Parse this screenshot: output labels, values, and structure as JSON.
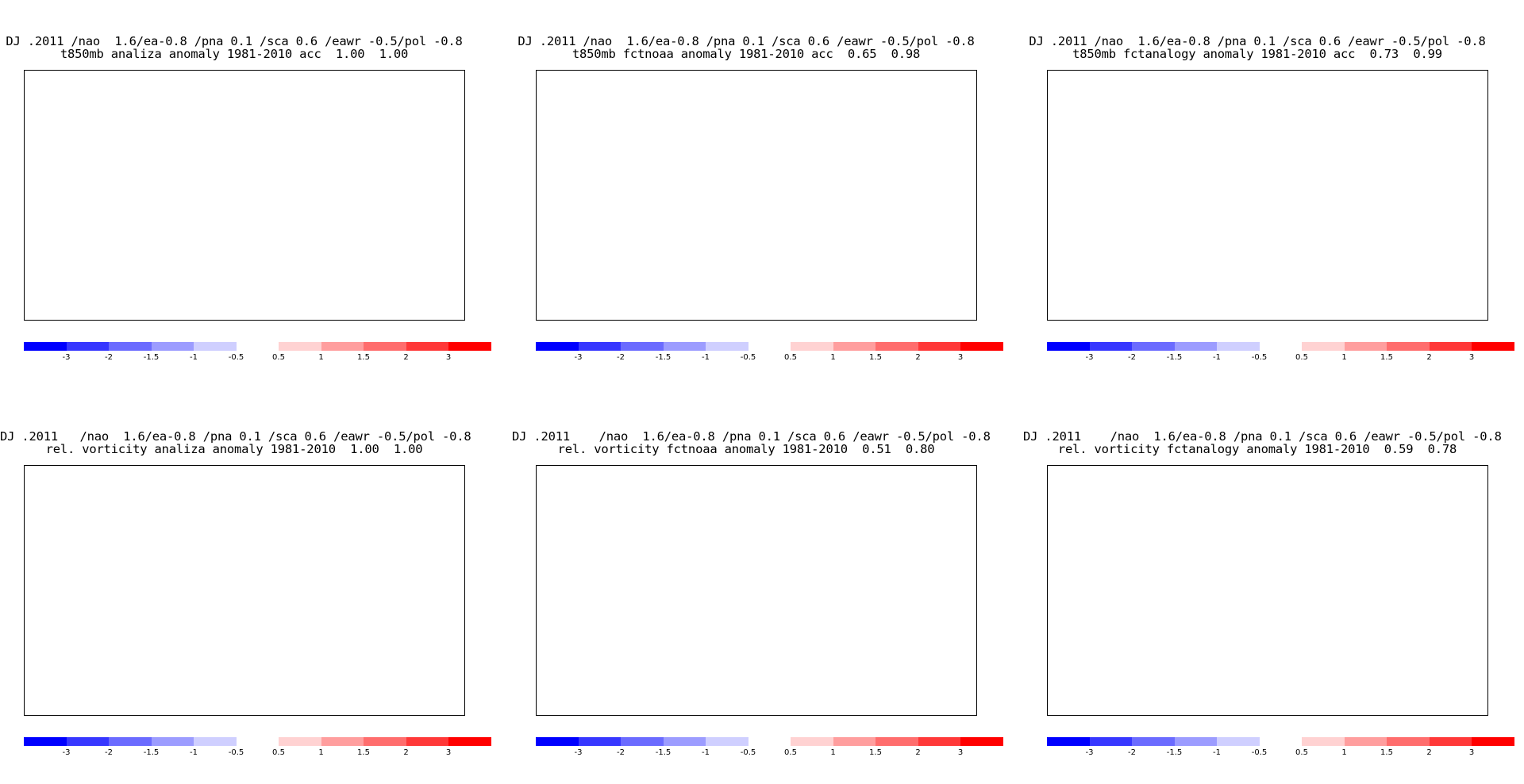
{
  "panels": [
    {
      "title_line1": "DJ .2011 /nao  1.6/ea-0.8 /pna 0.1 /sca 0.6 /eawr -0.5/pol -0.8",
      "title_line2": "t850mb analiza anomaly 1981-2010 acc  1.00  1.00",
      "field": "t850mb",
      "source": "analiza",
      "acc": [
        1.0,
        1.0
      ]
    },
    {
      "title_line1": "DJ .2011 /nao  1.6/ea-0.8 /pna 0.1 /sca 0.6 /eawr -0.5/pol -0.8",
      "title_line2": "t850mb fctnoaa anomaly 1981-2010 acc  0.65  0.98",
      "field": "t850mb",
      "source": "fctnoaa",
      "acc": [
        0.65,
        0.98
      ]
    },
    {
      "title_line1": "DJ .2011 /nao  1.6/ea-0.8 /pna 0.1 /sca 0.6 /eawr -0.5/pol -0.8",
      "title_line2": "t850mb fctanalogy anomaly 1981-2010 acc  0.73  0.99",
      "field": "t850mb",
      "source": "fctanalogy",
      "acc": [
        0.73,
        0.99
      ]
    },
    {
      "title_line1": "DJ .2011   /nao  1.6/ea-0.8 /pna 0.1 /sca 0.6 /eawr -0.5/pol -0.8",
      "title_line2": "rel. vorticity analiza anomaly 1981-2010  1.00  1.00",
      "field": "rel. vorticity",
      "source": "analiza",
      "acc": [
        1.0,
        1.0
      ]
    },
    {
      "title_line1": "DJ .2011    /nao  1.6/ea-0.8 /pna 0.1 /sca 0.6 /eawr -0.5/pol -0.8",
      "title_line2": "rel. vorticity fctnoaa anomaly 1981-2010  0.51  0.80",
      "field": "rel. vorticity",
      "source": "fctnoaa",
      "acc": [
        0.51,
        0.8
      ]
    },
    {
      "title_line1": "DJ .2011    /nao  1.6/ea-0.8 /pna 0.1 /sca 0.6 /eawr -0.5/pol -0.8",
      "title_line2": "rel. vorticity fctanalogy anomaly 1981-2010  0.59  0.78",
      "field": "rel. vorticity",
      "source": "fctanalogy",
      "acc": [
        0.59,
        0.78
      ]
    }
  ],
  "colorbar": {
    "colors": [
      "#0000ff",
      "#3737ff",
      "#6b6bff",
      "#9c9cff",
      "#cfcfff",
      "#ffffff",
      "#ffd2d2",
      "#ff9e9e",
      "#ff6d6d",
      "#ff3838",
      "#ff0000"
    ],
    "tick_labels": [
      "-3",
      "-2",
      "-1.5",
      "-1",
      "-0.5",
      "0.5",
      "1",
      "1.5",
      "2",
      "3"
    ]
  },
  "colors": {
    "coastline": "#20b8b8",
    "contour": "#000000",
    "grid": "#000000"
  }
}
